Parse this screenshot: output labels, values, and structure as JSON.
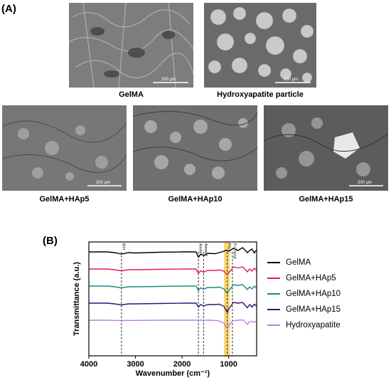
{
  "panel_a": {
    "label": "(A)",
    "images": [
      {
        "caption": "GelMA",
        "scale": "200 μm",
        "fill": "#7d7d7d"
      },
      {
        "caption": "Hydroxyapatite particle",
        "scale": "100 μm",
        "fill": "#6a6a6a"
      },
      {
        "caption": "GelMA+HAp5",
        "scale": "200 μm",
        "fill": "#777777"
      },
      {
        "caption": "GelMA+HAp10",
        "scale": "",
        "fill": "#6f6f6f"
      },
      {
        "caption": "GelMA+HAp15",
        "scale": "200 μm",
        "fill": "#5c5c5c"
      }
    ]
  },
  "panel_b": {
    "label": "(B)"
  },
  "chart_data": {
    "type": "line",
    "xlabel": "Wavenumber (cm⁻¹)",
    "ylabel": "Transmittance (a.u.)",
    "xlim": [
      4000,
      400
    ],
    "x_reversed": true,
    "x_ticks": [
      "4000",
      "3000",
      "2000",
      "1000"
    ],
    "x_tick_values": [
      4000,
      3000,
      2000,
      1000
    ],
    "annotations": [
      {
        "text": "N-H",
        "x": 3300
      },
      {
        "text": "Amine I",
        "x": 1650
      },
      {
        "text": "Amine II",
        "x": 1540
      },
      {
        "text": "PO₄³⁻",
        "x": 1030
      },
      {
        "text": "P-O bend",
        "x": 920
      }
    ],
    "highlight_band": {
      "x": [
        1100,
        980
      ],
      "color": "#f5c842"
    },
    "series": [
      {
        "name": "GelMA",
        "color": "#000000",
        "offset": 4,
        "x": [
          4000,
          3600,
          3450,
          3300,
          3150,
          3000,
          2500,
          2000,
          1700,
          1650,
          1600,
          1540,
          1450,
          1300,
          1200,
          1100,
          1050,
          1000,
          900,
          800,
          700,
          600,
          550,
          500,
          450,
          400
        ],
        "y": [
          0,
          0,
          -0.2,
          -0.6,
          -0.2,
          -0.3,
          -0.1,
          0,
          0,
          -1.5,
          -0.6,
          -1.0,
          -0.4,
          -0.5,
          -0.2,
          0.2,
          0.5,
          0.2,
          1.0,
          0.4,
          1.2,
          -0.2,
          0.4,
          0.8,
          -0.3,
          0.6
        ]
      },
      {
        "name": "GelMA+HAp5",
        "color": "#e8185a",
        "offset": 3,
        "x": [
          4000,
          3600,
          3450,
          3300,
          3150,
          3000,
          2500,
          2000,
          1700,
          1650,
          1600,
          1540,
          1450,
          1300,
          1200,
          1100,
          1050,
          1030,
          1000,
          950,
          900,
          800,
          700,
          600,
          550,
          500,
          450,
          400
        ],
        "y": [
          0,
          0,
          -0.2,
          -0.5,
          -0.2,
          -0.2,
          -0.1,
          0,
          0,
          -1.3,
          -0.5,
          -0.9,
          -0.4,
          -0.4,
          -0.3,
          -0.6,
          -1.4,
          -1.6,
          -1.0,
          -0.4,
          0.6,
          0.3,
          0.6,
          -0.8,
          0.0,
          -0.6,
          0.2,
          -0.4
        ]
      },
      {
        "name": "GelMA+HAp10",
        "color": "#1a8a80",
        "offset": 2,
        "x": [
          4000,
          3600,
          3450,
          3300,
          3150,
          3000,
          2500,
          2000,
          1700,
          1650,
          1600,
          1540,
          1450,
          1300,
          1200,
          1100,
          1050,
          1030,
          1000,
          950,
          900,
          800,
          700,
          600,
          550,
          500,
          450,
          400
        ],
        "y": [
          0,
          0,
          -0.2,
          -0.5,
          -0.2,
          -0.2,
          -0.1,
          0,
          0,
          -1.2,
          -0.5,
          -0.9,
          -0.4,
          -0.4,
          -0.3,
          -0.8,
          -1.8,
          -2.0,
          -1.3,
          -0.6,
          0.4,
          0.2,
          0.4,
          -1.0,
          -0.2,
          -0.8,
          0.0,
          -0.6
        ]
      },
      {
        "name": "GelMA+HAp15",
        "color": "#3a0f7a",
        "offset": 1,
        "x": [
          4000,
          3600,
          3450,
          3300,
          3150,
          3000,
          2500,
          2000,
          1700,
          1650,
          1600,
          1540,
          1450,
          1300,
          1200,
          1100,
          1050,
          1030,
          1000,
          950,
          900,
          800,
          700,
          600,
          550,
          500,
          450,
          400
        ],
        "y": [
          0,
          0,
          -0.2,
          -0.5,
          -0.2,
          -0.2,
          -0.1,
          0,
          0,
          -1.1,
          -0.4,
          -0.8,
          -0.4,
          -0.4,
          -0.3,
          -0.9,
          -2.2,
          -2.6,
          -1.6,
          -0.8,
          0.2,
          0.0,
          0.2,
          -1.3,
          -0.4,
          -1.1,
          -0.3,
          -0.9
        ]
      },
      {
        "name": "Hydroxyapatite",
        "color": "#b77fe8",
        "offset": 0,
        "x": [
          4000,
          3600,
          3450,
          3300,
          3150,
          3000,
          2500,
          2000,
          1700,
          1600,
          1500,
          1400,
          1300,
          1200,
          1100,
          1060,
          1030,
          1000,
          960,
          900,
          800,
          700,
          640,
          600,
          560,
          500,
          450,
          400
        ],
        "y": [
          0,
          0,
          -0.05,
          -0.1,
          -0.05,
          -0.05,
          0,
          0,
          0,
          0,
          0,
          0,
          -0.05,
          -0.2,
          -0.8,
          -1.8,
          -2.4,
          -1.6,
          -0.8,
          -0.1,
          0,
          0.1,
          -0.5,
          -1.2,
          -0.5,
          -0.3,
          -0.6,
          -0.2
        ]
      }
    ]
  }
}
